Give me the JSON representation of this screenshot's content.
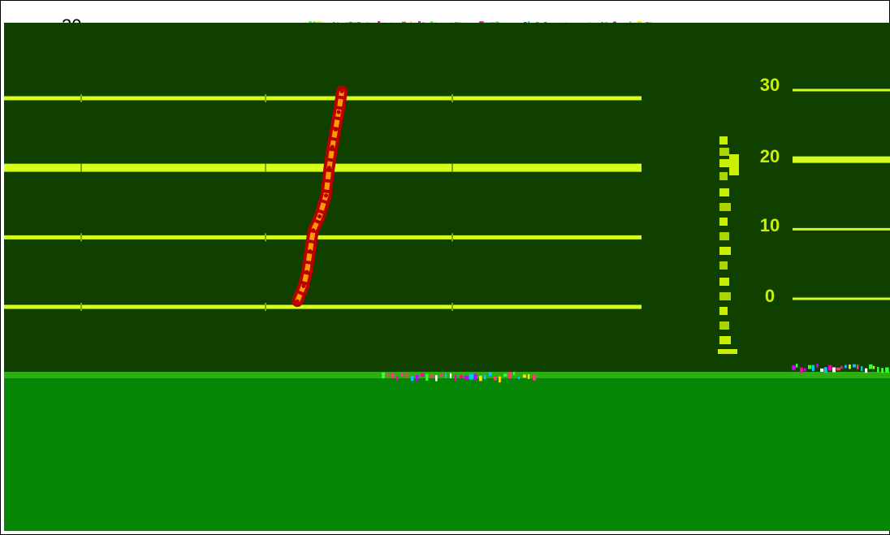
{
  "colors": {
    "frame": "#000000",
    "background_white": "#ffffff",
    "plot_dark_green": "#0f4000",
    "bottom_green": "#058705",
    "strip_green": "#2fae10",
    "gridline_yellow": "#d6ff1a",
    "line_red": "#b80000",
    "line_orange": "#ff9a00",
    "tick_yellow": "#c8f000",
    "noise_colors": [
      "#ff3a6e",
      "#ffe600",
      "#00c8ff",
      "#ff00aa",
      "#30ff30",
      "#ffffff",
      "#c000ff"
    ]
  },
  "chart_data": {
    "type": "line",
    "title": "",
    "xlabel": "",
    "ylabel": "",
    "y_axis_side": "right",
    "grid": true,
    "yticks": [
      30,
      20,
      10,
      0
    ],
    "ylim": [
      0,
      30
    ],
    "xlim": [
      0,
      100
    ],
    "series": [
      {
        "x": [
          46,
          47,
          47.5,
          48,
          48.5,
          49.5,
          50.5,
          51,
          51.5,
          52,
          52.5,
          53
        ],
        "y": [
          0.8,
          3,
          5,
          8,
          11,
          13,
          16,
          20,
          23,
          25.5,
          28,
          31
        ]
      }
    ]
  }
}
